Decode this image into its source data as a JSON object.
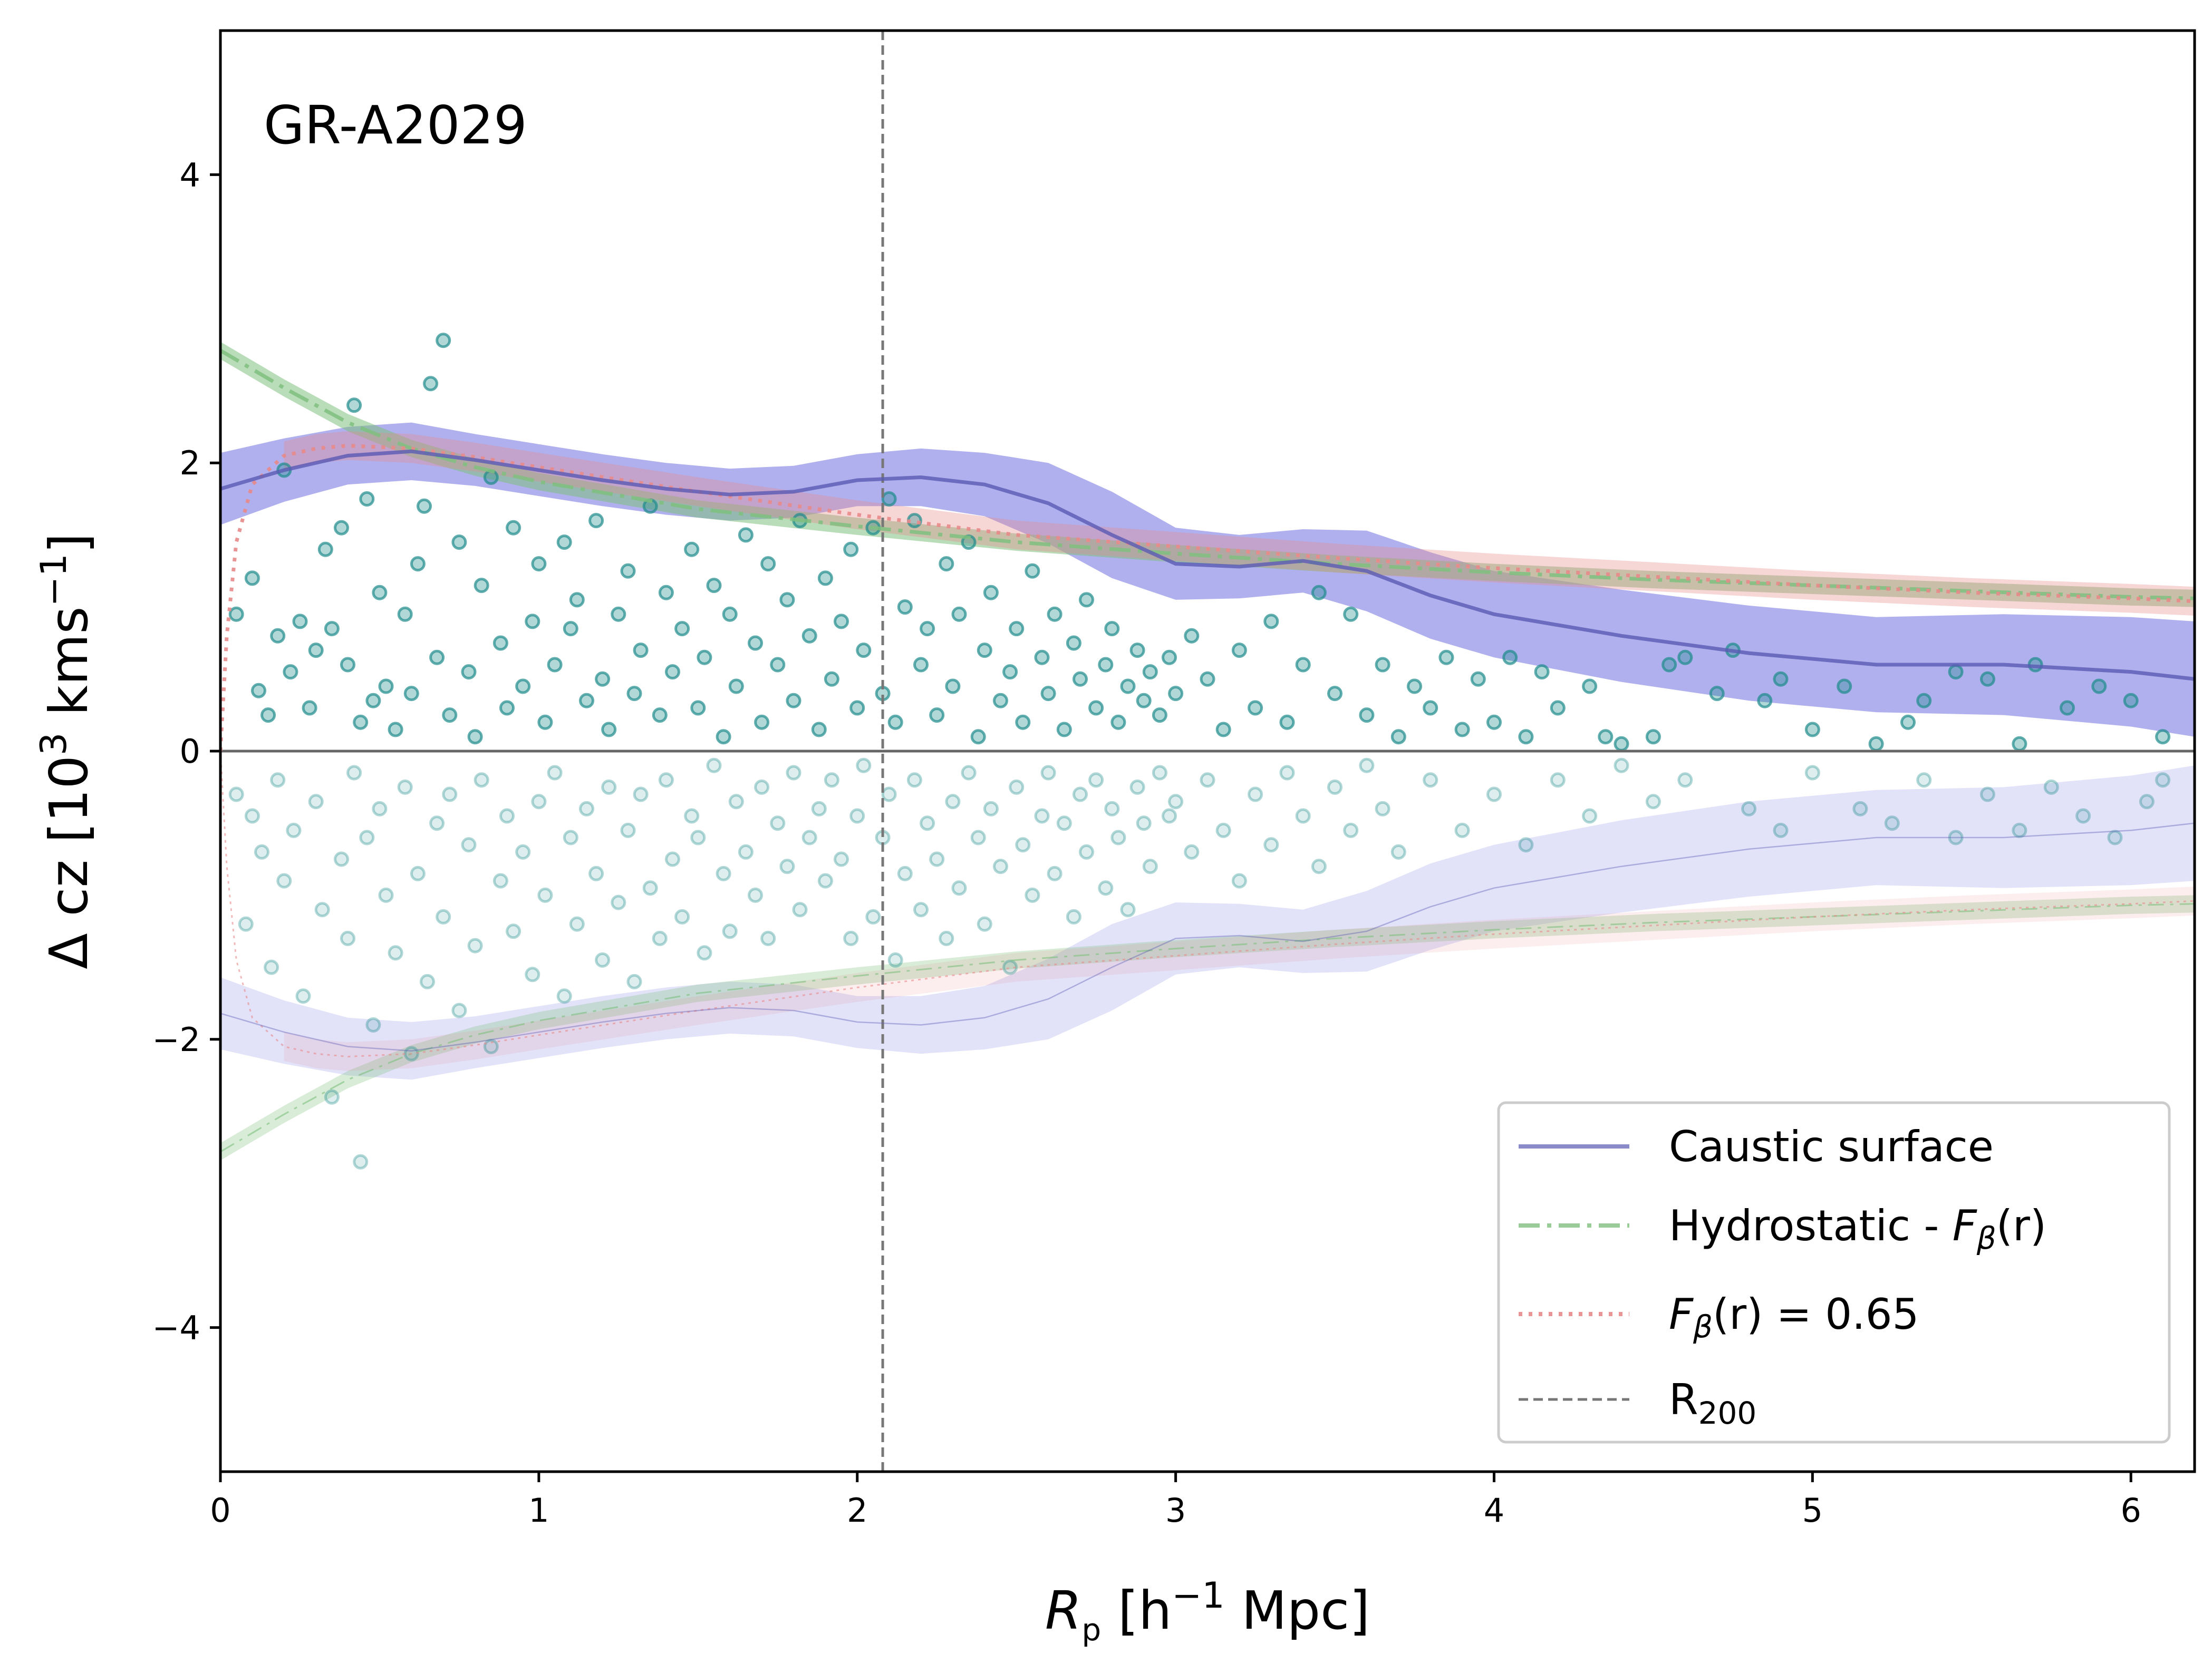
{
  "chart_data": {
    "type": "scatter",
    "title": "",
    "annotation": "GR-A2029",
    "xlabel": {
      "symbol": "R",
      "sub": "p",
      "rest": " [h",
      "sup": "−1",
      "unit": " Mpc]"
    },
    "ylabel": {
      "pre": "Δ cz [10",
      "sup": "3",
      "mid": " kms",
      "sup2": "−1",
      "post": "]"
    },
    "xlim": [
      0,
      6.2
    ],
    "ylim": [
      -5,
      5
    ],
    "xticks": [
      0,
      1,
      2,
      3,
      4,
      5,
      6
    ],
    "yticks": [
      -4,
      -2,
      0,
      2,
      4
    ],
    "xtick_labels": [
      "0",
      "1",
      "2",
      "3",
      "4",
      "5",
      "6"
    ],
    "ytick_labels": [
      "−4",
      "−2",
      "0",
      "2",
      "4"
    ],
    "r200": 2.08,
    "legend": {
      "position": "lower-right",
      "entries": [
        {
          "key": "caustic",
          "label": "Caustic surface"
        },
        {
          "key": "hydro",
          "label_pre": "Hydrostatic - ",
          "label_math": "F",
          "label_sub": "β",
          "label_post": "(r)"
        },
        {
          "key": "fbeta",
          "label_math": "F",
          "label_sub": "β",
          "label_post": "(r) = 0.65"
        },
        {
          "key": "r200",
          "label_pre": "R",
          "label_sub": "200"
        }
      ]
    },
    "colors": {
      "caustic": "#5a5ab4",
      "caustic_band": "#6f6fe0",
      "hydro": "#7fbf7f",
      "fbeta": "#e88a8a",
      "points": "#1f8c8c",
      "r200": "#777777",
      "zero": "#666666"
    },
    "caustic": {
      "x": [
        0,
        0.2,
        0.4,
        0.6,
        0.8,
        1.0,
        1.2,
        1.4,
        1.6,
        1.8,
        2.0,
        2.2,
        2.4,
        2.6,
        2.8,
        3.0,
        3.2,
        3.4,
        3.6,
        3.8,
        4.0,
        4.4,
        4.8,
        5.2,
        5.6,
        6.0,
        6.2
      ],
      "y": [
        1.82,
        1.95,
        2.05,
        2.08,
        2.02,
        1.95,
        1.88,
        1.82,
        1.78,
        1.8,
        1.88,
        1.9,
        1.85,
        1.72,
        1.5,
        1.3,
        1.28,
        1.32,
        1.25,
        1.08,
        0.95,
        0.8,
        0.68,
        0.6,
        0.6,
        0.55,
        0.5
      ],
      "band": [
        0.25,
        0.22,
        0.2,
        0.2,
        0.18,
        0.18,
        0.18,
        0.18,
        0.18,
        0.18,
        0.18,
        0.2,
        0.22,
        0.28,
        0.3,
        0.25,
        0.22,
        0.22,
        0.28,
        0.3,
        0.3,
        0.32,
        0.33,
        0.33,
        0.35,
        0.38,
        0.4
      ]
    },
    "hydrostatic": {
      "x": [
        0,
        0.2,
        0.4,
        0.6,
        0.8,
        1.0,
        1.5,
        2.0,
        2.5,
        3.0,
        3.5,
        4.0,
        4.5,
        5.0,
        5.5,
        6.0,
        6.2
      ],
      "y": [
        2.78,
        2.52,
        2.28,
        2.1,
        1.97,
        1.87,
        1.68,
        1.56,
        1.45,
        1.37,
        1.3,
        1.24,
        1.19,
        1.15,
        1.11,
        1.07,
        1.06
      ],
      "band": 0.06
    },
    "fbeta": {
      "x": [
        0,
        0.02,
        0.05,
        0.1,
        0.2,
        0.3,
        0.4,
        0.6,
        0.8,
        1.0,
        1.5,
        2.0,
        2.5,
        3.0,
        3.5,
        4.0,
        4.5,
        5.0,
        5.5,
        6.0,
        6.2
      ],
      "y": [
        0,
        0.8,
        1.45,
        1.85,
        2.05,
        2.1,
        2.12,
        2.1,
        2.04,
        1.97,
        1.8,
        1.64,
        1.5,
        1.42,
        1.34,
        1.27,
        1.21,
        1.15,
        1.1,
        1.06,
        1.04
      ],
      "band": 0.1
    },
    "points_upper": [
      [
        0.05,
        0.95
      ],
      [
        0.1,
        1.2
      ],
      [
        0.12,
        0.42
      ],
      [
        0.15,
        0.25
      ],
      [
        0.18,
        0.8
      ],
      [
        0.2,
        1.95
      ],
      [
        0.22,
        0.55
      ],
      [
        0.25,
        0.9
      ],
      [
        0.28,
        0.3
      ],
      [
        0.3,
        0.7
      ],
      [
        0.33,
        1.4
      ],
      [
        0.35,
        0.85
      ],
      [
        0.38,
        1.55
      ],
      [
        0.4,
        0.6
      ],
      [
        0.42,
        2.4
      ],
      [
        0.44,
        0.2
      ],
      [
        0.46,
        1.75
      ],
      [
        0.48,
        0.35
      ],
      [
        0.5,
        1.1
      ],
      [
        0.52,
        0.45
      ],
      [
        0.55,
        0.15
      ],
      [
        0.58,
        0.95
      ],
      [
        0.6,
        0.4
      ],
      [
        0.62,
        1.3
      ],
      [
        0.64,
        1.7
      ],
      [
        0.66,
        2.55
      ],
      [
        0.68,
        0.65
      ],
      [
        0.7,
        2.85
      ],
      [
        0.72,
        0.25
      ],
      [
        0.75,
        1.45
      ],
      [
        0.78,
        0.55
      ],
      [
        0.8,
        0.1
      ],
      [
        0.82,
        1.15
      ],
      [
        0.85,
        1.9
      ],
      [
        0.88,
        0.75
      ],
      [
        0.9,
        0.3
      ],
      [
        0.92,
        1.55
      ],
      [
        0.95,
        0.45
      ],
      [
        0.98,
        0.9
      ],
      [
        1.0,
        1.3
      ],
      [
        1.02,
        0.2
      ],
      [
        1.05,
        0.6
      ],
      [
        1.08,
        1.45
      ],
      [
        1.1,
        0.85
      ],
      [
        1.12,
        1.05
      ],
      [
        1.15,
        0.35
      ],
      [
        1.18,
        1.6
      ],
      [
        1.2,
        0.5
      ],
      [
        1.22,
        0.15
      ],
      [
        1.25,
        0.95
      ],
      [
        1.28,
        1.25
      ],
      [
        1.3,
        0.4
      ],
      [
        1.32,
        0.7
      ],
      [
        1.35,
        1.7
      ],
      [
        1.38,
        0.25
      ],
      [
        1.4,
        1.1
      ],
      [
        1.42,
        0.55
      ],
      [
        1.45,
        0.85
      ],
      [
        1.48,
        1.4
      ],
      [
        1.5,
        0.3
      ],
      [
        1.52,
        0.65
      ],
      [
        1.55,
        1.15
      ],
      [
        1.58,
        0.1
      ],
      [
        1.6,
        0.95
      ],
      [
        1.62,
        0.45
      ],
      [
        1.65,
        1.5
      ],
      [
        1.68,
        0.75
      ],
      [
        1.7,
        0.2
      ],
      [
        1.72,
        1.3
      ],
      [
        1.75,
        0.6
      ],
      [
        1.78,
        1.05
      ],
      [
        1.8,
        0.35
      ],
      [
        1.82,
        1.6
      ],
      [
        1.85,
        0.8
      ],
      [
        1.88,
        0.15
      ],
      [
        1.9,
        1.2
      ],
      [
        1.92,
        0.5
      ],
      [
        1.95,
        0.9
      ],
      [
        1.98,
        1.4
      ],
      [
        2.0,
        0.3
      ],
      [
        2.02,
        0.7
      ],
      [
        2.05,
        1.55
      ],
      [
        2.08,
        0.4
      ],
      [
        2.1,
        1.75
      ],
      [
        2.12,
        0.2
      ],
      [
        2.15,
        1.0
      ],
      [
        2.18,
        1.6
      ],
      [
        2.2,
        0.6
      ],
      [
        2.22,
        0.85
      ],
      [
        2.25,
        0.25
      ],
      [
        2.28,
        1.3
      ],
      [
        2.3,
        0.45
      ],
      [
        2.32,
        0.95
      ],
      [
        2.35,
        1.45
      ],
      [
        2.38,
        0.1
      ],
      [
        2.4,
        0.7
      ],
      [
        2.42,
        1.1
      ],
      [
        2.45,
        0.35
      ],
      [
        2.48,
        0.55
      ],
      [
        2.5,
        0.85
      ],
      [
        2.52,
        0.2
      ],
      [
        2.55,
        1.25
      ],
      [
        2.58,
        0.65
      ],
      [
        2.6,
        0.4
      ],
      [
        2.62,
        0.95
      ],
      [
        2.65,
        0.15
      ],
      [
        2.68,
        0.75
      ],
      [
        2.7,
        0.5
      ],
      [
        2.72,
        1.05
      ],
      [
        2.75,
        0.3
      ],
      [
        2.78,
        0.6
      ],
      [
        2.8,
        0.85
      ],
      [
        2.82,
        0.2
      ],
      [
        2.85,
        0.45
      ],
      [
        2.88,
        0.7
      ],
      [
        2.9,
        0.35
      ],
      [
        2.92,
        0.55
      ],
      [
        2.95,
        0.25
      ],
      [
        2.98,
        0.65
      ],
      [
        3.0,
        0.4
      ],
      [
        3.05,
        0.8
      ],
      [
        3.1,
        0.5
      ],
      [
        3.15,
        0.15
      ],
      [
        3.2,
        0.7
      ],
      [
        3.25,
        0.3
      ],
      [
        3.3,
        0.9
      ],
      [
        3.35,
        0.2
      ],
      [
        3.4,
        0.6
      ],
      [
        3.45,
        1.1
      ],
      [
        3.5,
        0.4
      ],
      [
        3.55,
        0.95
      ],
      [
        3.6,
        0.25
      ],
      [
        3.65,
        0.6
      ],
      [
        3.7,
        0.1
      ],
      [
        3.75,
        0.45
      ],
      [
        3.8,
        0.3
      ],
      [
        3.85,
        0.65
      ],
      [
        3.9,
        0.15
      ],
      [
        3.95,
        0.5
      ],
      [
        4.0,
        0.2
      ],
      [
        4.05,
        0.65
      ],
      [
        4.1,
        0.1
      ],
      [
        4.15,
        0.55
      ],
      [
        4.2,
        0.3
      ],
      [
        4.3,
        0.45
      ],
      [
        4.35,
        0.1
      ],
      [
        4.4,
        0.05
      ],
      [
        4.5,
        0.1
      ],
      [
        4.55,
        0.6
      ],
      [
        4.6,
        0.65
      ],
      [
        4.7,
        0.4
      ],
      [
        4.75,
        0.7
      ],
      [
        4.85,
        0.35
      ],
      [
        4.9,
        0.5
      ],
      [
        5.0,
        0.15
      ],
      [
        5.1,
        0.45
      ],
      [
        5.2,
        0.05
      ],
      [
        5.3,
        0.2
      ],
      [
        5.35,
        0.35
      ],
      [
        5.45,
        0.55
      ],
      [
        5.55,
        0.5
      ],
      [
        5.65,
        0.05
      ],
      [
        5.7,
        0.6
      ],
      [
        5.8,
        0.3
      ],
      [
        5.9,
        0.45
      ],
      [
        6.0,
        0.35
      ],
      [
        6.1,
        0.1
      ]
    ],
    "points_lower": [
      [
        0.05,
        -0.3
      ],
      [
        0.08,
        -1.2
      ],
      [
        0.1,
        -0.45
      ],
      [
        0.13,
        -0.7
      ],
      [
        0.16,
        -1.5
      ],
      [
        0.18,
        -0.2
      ],
      [
        0.2,
        -0.9
      ],
      [
        0.23,
        -0.55
      ],
      [
        0.26,
        -1.7
      ],
      [
        0.3,
        -0.35
      ],
      [
        0.32,
        -1.1
      ],
      [
        0.35,
        -2.4
      ],
      [
        0.38,
        -0.75
      ],
      [
        0.4,
        -1.3
      ],
      [
        0.42,
        -0.15
      ],
      [
        0.44,
        -2.85
      ],
      [
        0.46,
        -0.6
      ],
      [
        0.48,
        -1.9
      ],
      [
        0.5,
        -0.4
      ],
      [
        0.52,
        -1.0
      ],
      [
        0.55,
        -1.4
      ],
      [
        0.58,
        -0.25
      ],
      [
        0.6,
        -2.1
      ],
      [
        0.62,
        -0.85
      ],
      [
        0.65,
        -1.6
      ],
      [
        0.68,
        -0.5
      ],
      [
        0.7,
        -1.15
      ],
      [
        0.72,
        -0.3
      ],
      [
        0.75,
        -1.8
      ],
      [
        0.78,
        -0.65
      ],
      [
        0.8,
        -1.35
      ],
      [
        0.82,
        -0.2
      ],
      [
        0.85,
        -2.05
      ],
      [
        0.88,
        -0.9
      ],
      [
        0.9,
        -0.45
      ],
      [
        0.92,
        -1.25
      ],
      [
        0.95,
        -0.7
      ],
      [
        0.98,
        -1.55
      ],
      [
        1.0,
        -0.35
      ],
      [
        1.02,
        -1.0
      ],
      [
        1.05,
        -0.15
      ],
      [
        1.08,
        -1.7
      ],
      [
        1.1,
        -0.6
      ],
      [
        1.12,
        -1.2
      ],
      [
        1.15,
        -0.4
      ],
      [
        1.18,
        -0.85
      ],
      [
        1.2,
        -1.45
      ],
      [
        1.22,
        -0.25
      ],
      [
        1.25,
        -1.05
      ],
      [
        1.28,
        -0.55
      ],
      [
        1.3,
        -1.6
      ],
      [
        1.32,
        -0.3
      ],
      [
        1.35,
        -0.95
      ],
      [
        1.38,
        -1.3
      ],
      [
        1.4,
        -0.2
      ],
      [
        1.42,
        -0.75
      ],
      [
        1.45,
        -1.15
      ],
      [
        1.48,
        -0.45
      ],
      [
        1.5,
        -0.6
      ],
      [
        1.52,
        -1.4
      ],
      [
        1.55,
        -0.1
      ],
      [
        1.58,
        -0.85
      ],
      [
        1.6,
        -1.25
      ],
      [
        1.62,
        -0.35
      ],
      [
        1.65,
        -0.7
      ],
      [
        1.68,
        -1.0
      ],
      [
        1.7,
        -0.25
      ],
      [
        1.72,
        -1.3
      ],
      [
        1.75,
        -0.5
      ],
      [
        1.78,
        -0.8
      ],
      [
        1.8,
        -0.15
      ],
      [
        1.82,
        -1.1
      ],
      [
        1.85,
        -0.6
      ],
      [
        1.88,
        -0.4
      ],
      [
        1.9,
        -0.9
      ],
      [
        1.92,
        -0.2
      ],
      [
        1.95,
        -0.75
      ],
      [
        1.98,
        -1.3
      ],
      [
        2.0,
        -0.45
      ],
      [
        2.02,
        -0.1
      ],
      [
        2.05,
        -1.15
      ],
      [
        2.08,
        -0.6
      ],
      [
        2.1,
        -0.3
      ],
      [
        2.12,
        -1.45
      ],
      [
        2.15,
        -0.85
      ],
      [
        2.18,
        -0.2
      ],
      [
        2.2,
        -1.1
      ],
      [
        2.22,
        -0.5
      ],
      [
        2.25,
        -0.75
      ],
      [
        2.28,
        -1.3
      ],
      [
        2.3,
        -0.35
      ],
      [
        2.32,
        -0.95
      ],
      [
        2.35,
        -0.15
      ],
      [
        2.38,
        -0.6
      ],
      [
        2.4,
        -1.2
      ],
      [
        2.42,
        -0.4
      ],
      [
        2.45,
        -0.8
      ],
      [
        2.48,
        -1.5
      ],
      [
        2.5,
        -0.25
      ],
      [
        2.52,
        -0.65
      ],
      [
        2.55,
        -1.0
      ],
      [
        2.58,
        -0.45
      ],
      [
        2.6,
        -0.15
      ],
      [
        2.62,
        -0.85
      ],
      [
        2.65,
        -0.5
      ],
      [
        2.68,
        -1.15
      ],
      [
        2.7,
        -0.3
      ],
      [
        2.72,
        -0.7
      ],
      [
        2.75,
        -0.2
      ],
      [
        2.78,
        -0.95
      ],
      [
        2.8,
        -0.4
      ],
      [
        2.82,
        -0.6
      ],
      [
        2.85,
        -1.1
      ],
      [
        2.88,
        -0.25
      ],
      [
        2.9,
        -0.5
      ],
      [
        2.92,
        -0.8
      ],
      [
        2.95,
        -0.15
      ],
      [
        2.98,
        -0.45
      ],
      [
        3.0,
        -0.35
      ],
      [
        3.05,
        -0.7
      ],
      [
        3.1,
        -0.2
      ],
      [
        3.15,
        -0.55
      ],
      [
        3.2,
        -0.9
      ],
      [
        3.25,
        -0.3
      ],
      [
        3.3,
        -0.65
      ],
      [
        3.35,
        -0.15
      ],
      [
        3.4,
        -0.45
      ],
      [
        3.45,
        -0.8
      ],
      [
        3.5,
        -0.25
      ],
      [
        3.55,
        -0.55
      ],
      [
        3.6,
        -0.1
      ],
      [
        3.65,
        -0.4
      ],
      [
        3.7,
        -0.7
      ],
      [
        3.8,
        -0.2
      ],
      [
        3.9,
        -0.55
      ],
      [
        4.0,
        -0.3
      ],
      [
        4.1,
        -0.65
      ],
      [
        4.2,
        -0.2
      ],
      [
        4.3,
        -0.45
      ],
      [
        4.4,
        -0.1
      ],
      [
        4.5,
        -0.35
      ],
      [
        4.6,
        -0.2
      ],
      [
        4.8,
        -0.4
      ],
      [
        4.9,
        -0.55
      ],
      [
        5.0,
        -0.15
      ],
      [
        5.15,
        -0.4
      ],
      [
        5.25,
        -0.5
      ],
      [
        5.35,
        -0.2
      ],
      [
        5.45,
        -0.6
      ],
      [
        5.55,
        -0.3
      ],
      [
        5.65,
        -0.55
      ],
      [
        5.75,
        -0.25
      ],
      [
        5.85,
        -0.45
      ],
      [
        5.95,
        -0.6
      ],
      [
        6.05,
        -0.35
      ],
      [
        6.1,
        -0.2
      ]
    ]
  }
}
